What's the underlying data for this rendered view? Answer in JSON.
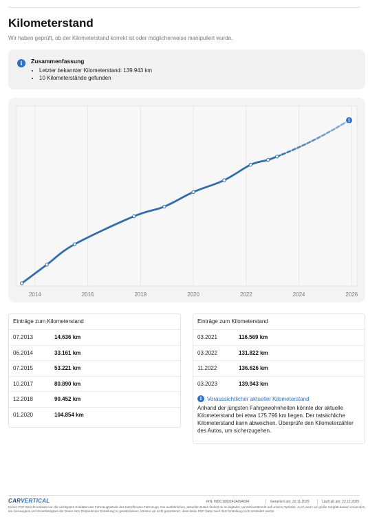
{
  "header": {
    "title": "Kilometerstand",
    "subtitle": "Wir haben geprüft, ob der Kilometerstand korrekt ist oder möglicherweise manipuliert wurde."
  },
  "summary": {
    "icon": "info-icon",
    "title": "Zusammenfassung",
    "items": [
      "Letzter bekannter Kilometerstand: 139.943 km",
      "10 Kilometerstände gefunden"
    ]
  },
  "chart_data": {
    "type": "line",
    "xlabel": "",
    "ylabel": "",
    "x_ticks": [
      "2014",
      "2016",
      "2018",
      "2020",
      "2022",
      "2024",
      "2026"
    ],
    "xlim": [
      2013.3,
      2026.2
    ],
    "ylim": [
      12000,
      190000
    ],
    "grid": true,
    "series": [
      {
        "style": "solid",
        "color": "#2e6db4",
        "points": [
          {
            "x": 2013.5,
            "y": 14636
          },
          {
            "x": 2014.45,
            "y": 33161
          },
          {
            "x": 2015.5,
            "y": 53221
          },
          {
            "x": 2017.75,
            "y": 80890
          },
          {
            "x": 2018.9,
            "y": 90452
          },
          {
            "x": 2020.0,
            "y": 104854
          },
          {
            "x": 2021.17,
            "y": 116569
          },
          {
            "x": 2022.17,
            "y": 131822
          },
          {
            "x": 2022.83,
            "y": 136626
          },
          {
            "x": 2023.17,
            "y": 139943
          }
        ]
      },
      {
        "style": "dashed",
        "color": "#8fb6e0",
        "points": [
          {
            "x": 2023.17,
            "y": 139943
          },
          {
            "x": 2025.9,
            "y": 175796
          }
        ]
      }
    ],
    "annotation_icon": "info-icon"
  },
  "table_left": {
    "title": "Einträge zum Kilometerstand",
    "rows": [
      {
        "date": "07.2013",
        "km": "14.636 km"
      },
      {
        "date": "06.2014",
        "km": "33.161 km"
      },
      {
        "date": "07.2015",
        "km": "53.221 km"
      },
      {
        "date": "10.2017",
        "km": "80.890 km"
      },
      {
        "date": "12.2018",
        "km": "90.452 km"
      },
      {
        "date": "01.2020",
        "km": "104.854 km"
      }
    ]
  },
  "table_right": {
    "title": "Einträge zum Kilometerstand",
    "rows": [
      {
        "date": "03.2021",
        "km": "116.569 km"
      },
      {
        "date": "03.2022",
        "km": "131.822 km"
      },
      {
        "date": "11.2022",
        "km": "136.626 km"
      },
      {
        "date": "03.2023",
        "km": "139.943 km"
      }
    ],
    "forecast_title": "Voraussichtlicher aktueller Kilometerstand",
    "forecast_text": "Anhand der jüngsten Fahrgewohnheiten könnte der aktuelle Kilometerstand bei etwa 175.796 km liegen. Der tatsächliche Kilometerstand kann abweichen. Überprüfe den Kilometerzähler des Autos, um sicherzugehen."
  },
  "footer": {
    "brand_part1": "CAR",
    "brand_part2": "VERTICAL",
    "fin": "FIN:  WDC1660241A094094",
    "generated": "Generiert am: 22.11.2025",
    "runs_until": "Läuft ab am: 22.12.2025",
    "disclaimer": "Dieser PDF-Bericht umfasst nur die wichtigsten Eckdaten der Fahrzeughistorie des betreffenden Fahrzeugs. Die ausführlichen, aktuellen Daten findest du im digitalen carVertical-Bericht auf unserer Website. Auch wenn wir große Sorgfalt darauf verwenden, die Genauigkeit und Zuverlässigkeit der Daten zum Zeitpunkt der Erstellung zu gewährleisten, können wir nicht garantieren, dass diese PDF-Datei nach ihrer Erstellung nicht verändert wurde."
  },
  "colors": {
    "accent": "#2a6fd6",
    "line": "#2e6db4",
    "forecast": "#8fb6e0"
  }
}
